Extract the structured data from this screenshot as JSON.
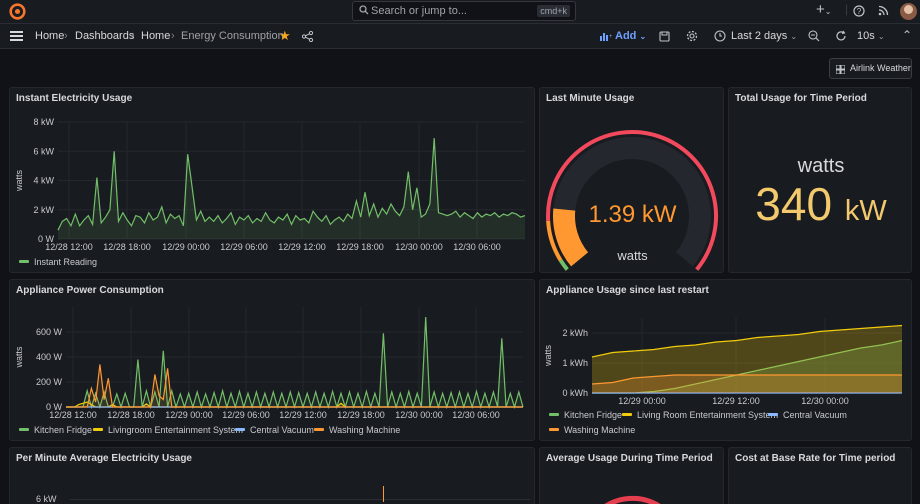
{
  "topbar": {
    "search_placeholder": "Search or jump to...",
    "search_shortcut": "cmd+k",
    "plus_label": "+",
    "help_icon": "help-icon",
    "rss_icon": "rss-icon"
  },
  "nav": {
    "breadcrumbs": [
      "Home",
      "Dashboards",
      "Home",
      "Energy Consumption"
    ],
    "add_label": "Add",
    "time_range": "Last 2 days",
    "refresh": "10s"
  },
  "airlink": {
    "label": "Airlink Weather"
  },
  "panels": {
    "instant": {
      "title": "Instant Electricity Usage"
    },
    "last_minute": {
      "title": "Last Minute Usage",
      "value": "1.39 kW",
      "unit": "watts"
    },
    "total": {
      "title": "Total Usage for Time Period",
      "unit": "watts",
      "value": "340",
      "value_unit": "kW"
    },
    "appliance_power": {
      "title": "Appliance Power Consumption"
    },
    "appliance_usage": {
      "title": "Appliance Usage since last restart"
    },
    "per_minute": {
      "title": "Per Minute Average Electricity Usage",
      "first_tick": "6 kW"
    },
    "avg_usage": {
      "title": "Average Usage During Time Period"
    },
    "cost": {
      "title": "Cost at Base Rate for Time period"
    }
  },
  "colors": {
    "green": "#73bf69",
    "yellow": "#f2cc0c",
    "blue": "#8ab8ff",
    "orange": "#ff9830",
    "red": "#f2495c",
    "gauge_value": "#ff9830"
  },
  "chart_data": [
    {
      "id": "instant",
      "type": "line",
      "ylabel": "watts",
      "y_ticks": [
        "0 W",
        "2 kW",
        "4 kW",
        "6 kW",
        "8 kW"
      ],
      "ylim": [
        0,
        8000
      ],
      "x_ticks": [
        "12/28 12:00",
        "12/28 18:00",
        "12/29 00:00",
        "12/29 06:00",
        "12/29 12:00",
        "12/29 18:00",
        "12/30 00:00",
        "12/30 06:00"
      ],
      "series": [
        {
          "name": "Instant Reading",
          "color": "#73bf69",
          "values": [
            600,
            1200,
            1400,
            900,
            1700,
            900,
            1300,
            1600,
            1000,
            4200,
            1100,
            1500,
            2000,
            6000,
            1200,
            1800,
            1300,
            900,
            1600,
            1500,
            1100,
            1800,
            1300,
            1500,
            2200,
            1100,
            1700,
            1400,
            1600,
            900,
            5800,
            3600,
            1300,
            1900,
            1200,
            1500,
            1200,
            1600,
            1100,
            1400,
            1800,
            1000,
            1500,
            1300,
            1600,
            1100,
            1400,
            1200,
            1800,
            1300,
            1100,
            1500,
            1300,
            1700,
            1000,
            1600,
            1300,
            1400,
            1100,
            1900,
            1500,
            1200,
            1600,
            1000,
            1300,
            1500,
            1200,
            1700,
            1400,
            2600,
            1500,
            3200,
            1600,
            2400,
            1500,
            2100,
            1700,
            2400,
            1900,
            1600,
            2200,
            4600,
            2000,
            3500,
            1500,
            1700,
            2400,
            6900,
            1800,
            1700,
            1600,
            1700,
            1900,
            1500,
            1800,
            1600,
            1400,
            1800,
            1500,
            1700,
            1600,
            1800,
            1500,
            1700,
            1600,
            1800,
            1700,
            1500,
            1600
          ]
        }
      ]
    },
    {
      "id": "last_minute_gauge",
      "type": "gauge",
      "value_kw": 1.39,
      "thresholds": [
        "#73bf69",
        "#ff9830",
        "#f2495c"
      ]
    },
    {
      "id": "appliance_power",
      "type": "line",
      "ylabel": "watts",
      "y_ticks": [
        "0 W",
        "200 W",
        "400 W",
        "600 W"
      ],
      "ylim": [
        0,
        800
      ],
      "x_ticks": [
        "12/28 12:00",
        "12/28 18:00",
        "12/29 00:00",
        "12/29 06:00",
        "12/29 12:00",
        "12/29 18:00",
        "12/30 00:00",
        "12/30 06:00"
      ],
      "series": [
        {
          "name": "Kitchen Fridge",
          "color": "#73bf69",
          "values": [
            0,
            0,
            0,
            0,
            0,
            130,
            0,
            110,
            0,
            120,
            0,
            0,
            105,
            0,
            110,
            0,
            0,
            380,
            0,
            130,
            0,
            120,
            0,
            450,
            0,
            130,
            0,
            105,
            0,
            110,
            0,
            120,
            0,
            105,
            0,
            115,
            0,
            130,
            0,
            110,
            0,
            125,
            0,
            110,
            0,
            120,
            0,
            110,
            0,
            120,
            0,
            110,
            0,
            120,
            0,
            115,
            0,
            110,
            0,
            120,
            0,
            110,
            0,
            125,
            0,
            110,
            0,
            120,
            0,
            110,
            0,
            125,
            0,
            110,
            0,
            590,
            0,
            120,
            0,
            110,
            0,
            125,
            0,
            110,
            0,
            720,
            0,
            120,
            0,
            110,
            0,
            115,
            0,
            120,
            0,
            110,
            0,
            125,
            0,
            110,
            0,
            120,
            0,
            550,
            0,
            110,
            0,
            120,
            0
          ]
        },
        {
          "name": "Livingroom Entertainment System",
          "color": "#f2cc0c",
          "values": [
            0,
            0,
            0,
            20,
            30,
            40,
            20,
            0,
            0,
            0,
            0,
            20,
            0,
            0,
            0,
            0,
            0,
            0,
            0,
            25,
            0,
            0,
            0,
            0,
            0,
            0,
            0,
            0,
            0,
            0,
            0,
            0,
            0,
            0,
            0,
            0,
            0,
            0,
            0,
            0,
            0,
            0,
            0,
            0,
            0,
            0,
            0,
            0,
            0,
            0,
            0,
            0,
            0,
            0,
            0,
            0,
            0,
            0,
            0,
            0,
            0,
            0,
            0,
            0,
            0,
            30,
            0,
            0,
            0,
            0,
            0,
            0,
            0,
            0,
            0,
            0,
            0,
            0,
            0,
            0,
            0,
            0,
            0,
            0,
            0,
            0,
            0,
            0,
            0,
            0,
            0,
            0,
            0,
            0,
            0,
            0,
            0,
            0,
            0,
            0,
            0,
            0,
            0,
            0,
            0,
            0,
            0,
            0,
            0
          ]
        },
        {
          "name": "Central Vacuum",
          "color": "#8ab8ff",
          "values": [
            0,
            0,
            0,
            0,
            0,
            0,
            0,
            0,
            0,
            0,
            0,
            0,
            0,
            0,
            0,
            0,
            0,
            0,
            0,
            0,
            0,
            0,
            0,
            0,
            0,
            0,
            0,
            0,
            0,
            0,
            0,
            0,
            0,
            0,
            0,
            0,
            0,
            0,
            0,
            0,
            0,
            0,
            0,
            0,
            0,
            0,
            0,
            0,
            0,
            0,
            0,
            0,
            0,
            0,
            0,
            0,
            0,
            0,
            0,
            0,
            0,
            0,
            0,
            0,
            0,
            0,
            0,
            0,
            0,
            0,
            0,
            0,
            0,
            0,
            0,
            0,
            0,
            0,
            0,
            0,
            0,
            0,
            0,
            0,
            0,
            0,
            0,
            0,
            0,
            0,
            0,
            0,
            0,
            0,
            0,
            0,
            0,
            0,
            0,
            0,
            0,
            0,
            0,
            0,
            0,
            0,
            0,
            0,
            0
          ]
        },
        {
          "name": "Washing Machine",
          "color": "#ff9830",
          "values": [
            0,
            0,
            0,
            0,
            0,
            0,
            150,
            40,
            340,
            60,
            230,
            0,
            0,
            0,
            0,
            0,
            0,
            0,
            0,
            0,
            0,
            260,
            90,
            60,
            310,
            0,
            0,
            0,
            0,
            0,
            0,
            0,
            0,
            0,
            0,
            0,
            0,
            0,
            0,
            0,
            0,
            0,
            0,
            0,
            0,
            0,
            0,
            0,
            0,
            0,
            0,
            0,
            0,
            0,
            0,
            0,
            0,
            0,
            0,
            0,
            0,
            0,
            0,
            0,
            0,
            0,
            0,
            0,
            0,
            0,
            0,
            0,
            0,
            0,
            0,
            0,
            0,
            0,
            0,
            0,
            0,
            0,
            0,
            0,
            0,
            0,
            0,
            0,
            0,
            0,
            0,
            0,
            0,
            0,
            0,
            0,
            0,
            0,
            0,
            0,
            0,
            0,
            0,
            0,
            0,
            0,
            0,
            0,
            0
          ]
        }
      ]
    },
    {
      "id": "appliance_usage",
      "type": "area",
      "ylabel": "watts",
      "y_ticks": [
        "0 kWh",
        "1 kWh",
        "2 kWh"
      ],
      "ylim": [
        0,
        2.5
      ],
      "x_ticks": [
        "12/29 00:00",
        "12/29 12:00",
        "12/30 00:00"
      ],
      "series": [
        {
          "name": "Kitchen Fridge",
          "color": "#73bf69",
          "values": [
            0.0,
            0.0,
            0.0,
            0.05,
            0.15,
            0.3,
            0.45,
            0.6,
            0.75,
            0.9,
            1.05,
            1.2,
            1.35,
            1.5,
            1.6,
            1.75
          ]
        },
        {
          "name": "Living Room Entertainment System",
          "color": "#f2cc0c",
          "values": [
            1.2,
            1.35,
            1.4,
            1.45,
            1.55,
            1.6,
            1.7,
            1.75,
            1.85,
            1.9,
            1.95,
            2.05,
            2.1,
            2.15,
            2.2,
            2.25
          ]
        },
        {
          "name": "Central Vacuum",
          "color": "#8ab8ff",
          "values": [
            0,
            0,
            0,
            0,
            0,
            0,
            0,
            0,
            0,
            0,
            0,
            0,
            0,
            0,
            0,
            0
          ]
        },
        {
          "name": "Washing Machine",
          "color": "#ff9830",
          "values": [
            0.3,
            0.35,
            0.5,
            0.55,
            0.6,
            0.6,
            0.6,
            0.6,
            0.6,
            0.6,
            0.6,
            0.6,
            0.6,
            0.6,
            0.6,
            0.6
          ]
        }
      ]
    }
  ]
}
